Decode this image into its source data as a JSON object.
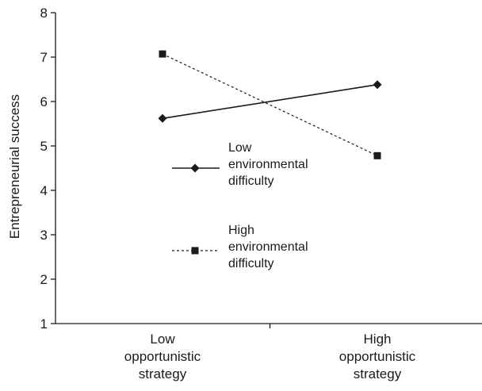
{
  "chart_data": {
    "type": "line",
    "ylabel": "Entrepreneurial success",
    "ylim": [
      1,
      8
    ],
    "yticks": [
      "1",
      "2",
      "3",
      "4",
      "5",
      "6",
      "7",
      "8"
    ],
    "categories": [
      [
        "Low",
        "opportunistic",
        "strategy"
      ],
      [
        "High",
        "opportunistic",
        "strategy"
      ]
    ],
    "series": [
      {
        "name_lines": [
          "Low",
          "environmental",
          "difficulty"
        ],
        "values": [
          5.62,
          6.38
        ],
        "line_style": "solid",
        "marker": "diamond"
      },
      {
        "name_lines": [
          "High",
          "environmental",
          "difficulty"
        ],
        "values": [
          7.07,
          4.78
        ],
        "line_style": "dotted",
        "marker": "square"
      }
    ],
    "legend_position": "center",
    "grid": false,
    "colors": {
      "line": "#1a1a1a",
      "text": "#1a1a1a"
    }
  }
}
